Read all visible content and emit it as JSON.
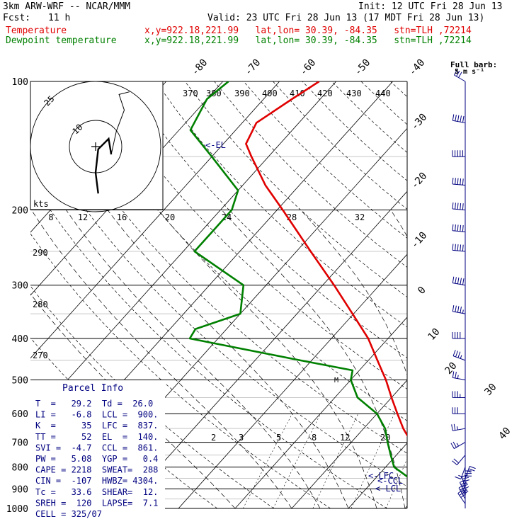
{
  "header": {
    "model": "3km ARW-WRF -- NCAR/MMM",
    "init": "Init: 12 UTC Fri 28 Jun 13",
    "fcst_label": "Fcst:",
    "fcst_value": "11 h",
    "valid": "Valid: 23 UTC Fri 28 Jun 13 (17 MDT Fri 28 Jun 13)",
    "temp_label": "Temperature",
    "dew_label": "Dewpoint temperature",
    "location": "x,y=922.18,221.99   lat,lon= 30.39, -84.35   stn=TLH ,72214",
    "colors": {
      "temperature": "#e00000",
      "dewpoint": "#008000",
      "parcel": "#000080"
    }
  },
  "barb_key": {
    "title": "Full barb:",
    "value": "5 m s⁻¹"
  },
  "hodograph": {
    "units": "kts",
    "ring_labels": [
      "10",
      "25"
    ],
    "path_kts": [
      [
        1,
        -18
      ],
      [
        0,
        -10
      ],
      [
        1,
        -1
      ],
      [
        5,
        3
      ],
      [
        6,
        -3
      ],
      [
        8,
        6
      ],
      [
        11,
        14
      ],
      [
        9,
        20
      ],
      [
        13,
        21
      ]
    ]
  },
  "parcel_info": {
    "title": "Parcel Info",
    "rows": [
      "T  =   29.2  Td =  26.0",
      "LI =   -6.8  LCL =  900.",
      "K  =     35  LFC =  837.",
      "TT =     52  EL  =  140.",
      "SVI =  -4.7  CCL =  861.",
      "PW =   5.08  YGP =   0.4",
      "CAPE = 2218  SWEAT=  288",
      "CIN =  -107  HWBZ= 4304.",
      "Tc =   33.6  SHEAR=  12.",
      "SREH =  120  LAPSE=  7.1",
      "CELL = 325/07"
    ]
  },
  "level_labels": {
    "el": "<-EL",
    "lfc": "<-LFC",
    "ccl": "<-CCL",
    "lcl": "<-LCL"
  },
  "chart_data": {
    "type": "line",
    "title": "",
    "xlabel": "",
    "ylabel": "",
    "pressure_ticks": [
      100,
      200,
      300,
      400,
      500,
      600,
      700,
      800,
      900,
      1000
    ],
    "isotherm_labels": [
      "-80",
      "-70",
      "-60",
      "-50",
      "-40",
      "-30",
      "-20",
      "-10",
      "0",
      "10",
      "20",
      "30",
      "40"
    ],
    "theta_labels": [
      "270",
      "280",
      "290"
    ],
    "theta_top_labels": [
      "370",
      "380",
      "390",
      "400",
      "410",
      "420",
      "430",
      "440"
    ],
    "mixing_ratio_labels": [
      "2",
      "3",
      "5",
      "8",
      "12",
      "20"
    ],
    "hodo_speed_labels": [
      "8",
      "12",
      "16",
      "20",
      "24",
      "28",
      "32"
    ],
    "series": [
      {
        "name": "Temperature",
        "points": [
          [
            1000,
            29.2
          ],
          [
            975,
            26.5
          ],
          [
            950,
            24.5
          ],
          [
            925,
            23.0
          ],
          [
            900,
            21.2
          ],
          [
            850,
            18.5
          ],
          [
            800,
            15.8
          ],
          [
            750,
            13.5
          ],
          [
            700,
            10.6
          ],
          [
            650,
            7.0
          ],
          [
            600,
            3.6
          ],
          [
            550,
            0.0
          ],
          [
            500,
            -3.8
          ],
          [
            450,
            -8.4
          ],
          [
            400,
            -13.5
          ],
          [
            350,
            -20.2
          ],
          [
            300,
            -28.0
          ],
          [
            250,
            -37.5
          ],
          [
            200,
            -49.0
          ],
          [
            175,
            -56.0
          ],
          [
            150,
            -63.0
          ],
          [
            140,
            -66.0
          ],
          [
            125,
            -67.5
          ],
          [
            110,
            -65.0
          ],
          [
            100,
            -63.0
          ]
        ]
      },
      {
        "name": "Dewpoint temperature",
        "points": [
          [
            1000,
            26.0
          ],
          [
            975,
            24.2
          ],
          [
            950,
            21.8
          ],
          [
            925,
            20.8
          ],
          [
            900,
            19.5
          ],
          [
            875,
            18.5
          ],
          [
            850,
            16.0
          ],
          [
            800,
            11.5
          ],
          [
            750,
            9.0
          ],
          [
            700,
            6.4
          ],
          [
            650,
            3.8
          ],
          [
            600,
            0.0
          ],
          [
            550,
            -6.0
          ],
          [
            500,
            -10.0
          ],
          [
            475,
            -11.2
          ],
          [
            450,
            -22.0
          ],
          [
            400,
            -45.0
          ],
          [
            380,
            -45.5
          ],
          [
            350,
            -40.0
          ],
          [
            300,
            -44.0
          ],
          [
            250,
            -58.0
          ],
          [
            220,
            -58.0
          ],
          [
            200,
            -58.0
          ],
          [
            180,
            -60.0
          ],
          [
            150,
            -70.0
          ],
          [
            130,
            -78.0
          ],
          [
            110,
            -80.0
          ],
          [
            100,
            -79.0
          ]
        ]
      }
    ],
    "wind_barbs": [
      {
        "p": 975,
        "dir": 325,
        "spd": 6
      },
      {
        "p": 950,
        "dir": 330,
        "spd": 8
      },
      {
        "p": 925,
        "dir": 335,
        "spd": 9
      },
      {
        "p": 900,
        "dir": 345,
        "spd": 7
      },
      {
        "p": 875,
        "dir": 0,
        "spd": 6
      },
      {
        "p": 850,
        "dir": 20,
        "spd": 5
      },
      {
        "p": 800,
        "dir": 200,
        "spd": 3
      },
      {
        "p": 750,
        "dir": 220,
        "spd": 4
      },
      {
        "p": 700,
        "dir": 240,
        "spd": 5
      },
      {
        "p": 650,
        "dir": 260,
        "spd": 5
      },
      {
        "p": 600,
        "dir": 270,
        "spd": 6
      },
      {
        "p": 550,
        "dir": 270,
        "spd": 7
      },
      {
        "p": 500,
        "dir": 280,
        "spd": 5
      },
      {
        "p": 450,
        "dir": 290,
        "spd": 7
      },
      {
        "p": 400,
        "dir": 270,
        "spd": 8
      },
      {
        "p": 350,
        "dir": 280,
        "spd": 9
      },
      {
        "p": 300,
        "dir": 280,
        "spd": 11
      },
      {
        "p": 250,
        "dir": 275,
        "spd": 14
      },
      {
        "p": 225,
        "dir": 275,
        "spd": 15
      },
      {
        "p": 200,
        "dir": 275,
        "spd": 16
      },
      {
        "p": 175,
        "dir": 275,
        "spd": 15
      },
      {
        "p": 150,
        "dir": 270,
        "spd": 14
      },
      {
        "p": 125,
        "dir": 280,
        "spd": 10
      },
      {
        "p": 100,
        "dir": 300,
        "spd": 6
      }
    ]
  }
}
